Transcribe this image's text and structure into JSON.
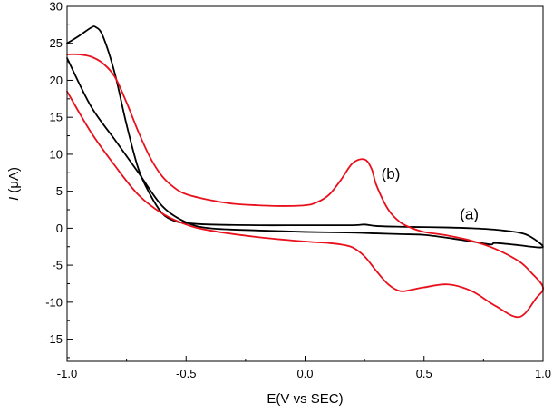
{
  "chart_data": {
    "type": "line",
    "title": "",
    "xlabel": "E(V vs SEC)",
    "ylabel": "I (μA)",
    "ylabel_symbol": "I",
    "ylabel_unit": "(μA)",
    "xlim": [
      -1.0,
      1.0
    ],
    "ylim": [
      -18,
      30
    ],
    "x_ticks": [
      -1.0,
      -0.5,
      0.0,
      0.5,
      1.0
    ],
    "x_tick_labels": [
      "-1.0",
      "-0.5",
      "0.0",
      "0.5",
      "1.0"
    ],
    "y_ticks": [
      -15,
      -10,
      -5,
      0,
      5,
      10,
      15,
      20,
      25,
      30
    ],
    "y_tick_labels": [
      "-15",
      "-10",
      "-5",
      "0",
      "5",
      "10",
      "15",
      "20",
      "25",
      "30"
    ],
    "grid": false,
    "legend": "none",
    "annotations": [
      {
        "text": "(a)",
        "x": 0.69,
        "y": 1.2
      },
      {
        "text": "(b)",
        "x": 0.36,
        "y": 6.7
      }
    ],
    "series": [
      {
        "name": "(a)",
        "color": "#000000",
        "x": [
          -1.0,
          -0.95,
          -0.9,
          -0.88,
          -0.85,
          -0.8,
          -0.75,
          -0.7,
          -0.65,
          -0.6,
          -0.55,
          -0.5,
          -0.4,
          -0.2,
          0.0,
          0.2,
          0.25,
          0.3,
          0.4,
          0.5,
          0.6,
          0.7,
          0.8,
          0.9,
          0.95,
          1.0,
          0.95,
          0.9,
          0.8,
          0.78,
          0.7,
          0.6,
          0.5,
          0.4,
          0.3,
          0.2,
          0.0,
          -0.2,
          -0.4,
          -0.5,
          -0.6,
          -0.7,
          -0.8,
          -0.9,
          -1.0
        ],
        "y": [
          25.0,
          26.0,
          27.1,
          27.2,
          26.0,
          21.0,
          14.0,
          8.0,
          4.5,
          2.0,
          1.0,
          0.7,
          0.5,
          0.4,
          0.4,
          0.4,
          0.5,
          0.3,
          0.2,
          0.15,
          0.1,
          0.0,
          -0.2,
          -0.6,
          -1.2,
          -2.5,
          -2.5,
          -2.3,
          -2.0,
          -2.2,
          -1.8,
          -1.3,
          -0.9,
          -0.8,
          -0.7,
          -0.6,
          -0.5,
          -0.3,
          0.0,
          0.8,
          3.0,
          7.5,
          12.0,
          16.5,
          23.0
        ]
      },
      {
        "name": "(b)",
        "color": "#e8101c",
        "x": [
          -1.0,
          -0.95,
          -0.9,
          -0.85,
          -0.8,
          -0.75,
          -0.7,
          -0.65,
          -0.6,
          -0.55,
          -0.5,
          -0.4,
          -0.3,
          -0.2,
          -0.1,
          0.0,
          0.05,
          0.1,
          0.15,
          0.2,
          0.25,
          0.28,
          0.3,
          0.35,
          0.4,
          0.45,
          0.5,
          0.6,
          0.7,
          0.8,
          0.9,
          0.95,
          1.0,
          0.97,
          0.9,
          0.8,
          0.7,
          0.6,
          0.5,
          0.45,
          0.4,
          0.35,
          0.3,
          0.25,
          0.2,
          0.15,
          0.1,
          0.0,
          -0.2,
          -0.4,
          -0.5,
          -0.6,
          -0.7,
          -0.8,
          -0.9,
          -1.0
        ],
        "y": [
          23.5,
          23.5,
          23.2,
          22.3,
          20.5,
          17.0,
          13.0,
          9.5,
          7.0,
          5.5,
          4.6,
          3.8,
          3.3,
          3.1,
          3.0,
          3.1,
          3.5,
          4.5,
          6.5,
          8.8,
          9.3,
          8.0,
          5.8,
          2.5,
          0.8,
          0.0,
          -0.5,
          -1.0,
          -1.7,
          -2.8,
          -4.5,
          -6.0,
          -8.0,
          -9.5,
          -12.0,
          -10.5,
          -8.5,
          -7.6,
          -8.0,
          -8.3,
          -8.5,
          -7.6,
          -5.8,
          -3.8,
          -2.6,
          -2.2,
          -2.0,
          -1.8,
          -1.2,
          -0.3,
          0.5,
          2.0,
          4.5,
          8.5,
          13.0,
          18.5
        ]
      }
    ]
  }
}
